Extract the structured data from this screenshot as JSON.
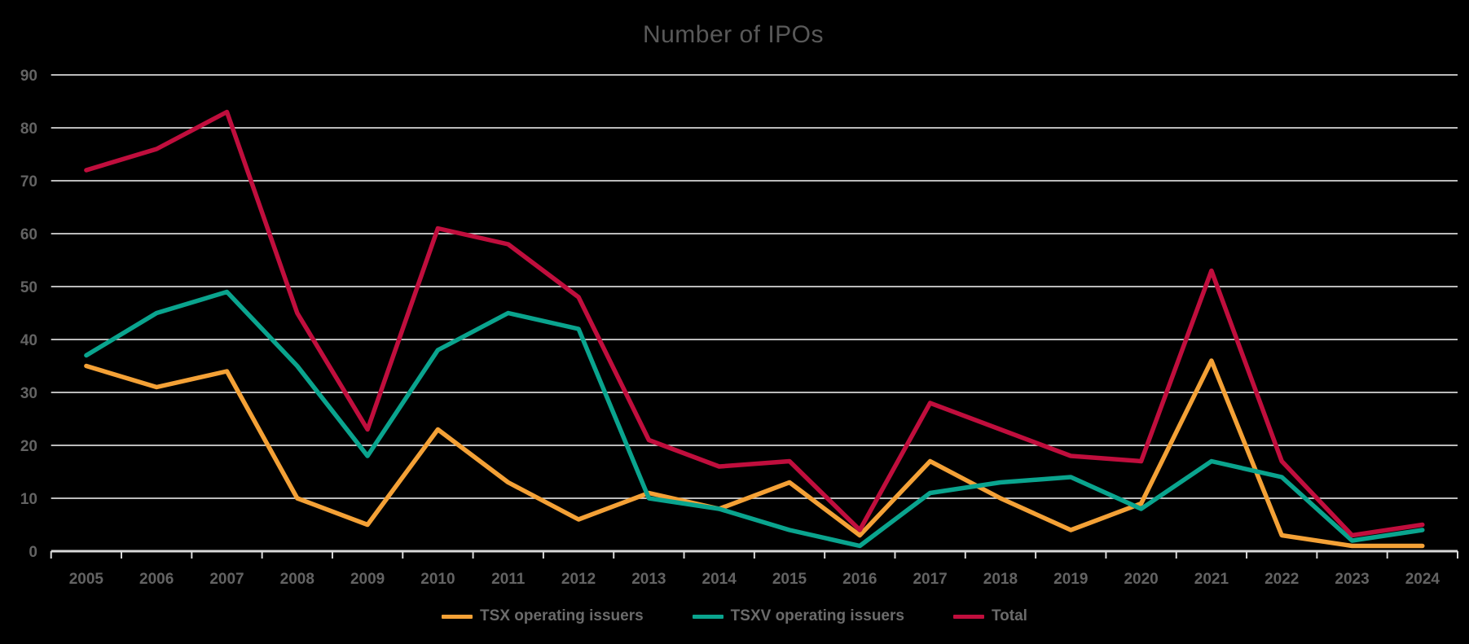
{
  "chart_data": {
    "type": "line",
    "title": "Number of IPOs",
    "categories": [
      "2005",
      "2006",
      "2007",
      "2008",
      "2009",
      "2010",
      "2011",
      "2012",
      "2013",
      "2014",
      "2015",
      "2016",
      "2017",
      "2018",
      "2019",
      "2020",
      "2021",
      "2022",
      "2023",
      "2024"
    ],
    "series": [
      {
        "name": "TSX operating issuers",
        "color": "#F4A136",
        "values": [
          35,
          31,
          34,
          10,
          5,
          23,
          13,
          6,
          11,
          8,
          13,
          3,
          17,
          10,
          4,
          9,
          36,
          3,
          1,
          1
        ]
      },
      {
        "name": "TSXV operating issuers",
        "color": "#0AA48E",
        "values": [
          37,
          45,
          49,
          35,
          18,
          38,
          45,
          42,
          10,
          8,
          4,
          1,
          11,
          13,
          14,
          8,
          17,
          14,
          2,
          4
        ]
      },
      {
        "name": "Total",
        "color": "#C00E3D",
        "values": [
          72,
          76,
          83,
          45,
          23,
          61,
          58,
          48,
          21,
          16,
          17,
          4,
          28,
          23,
          18,
          17,
          53,
          17,
          3,
          5
        ]
      }
    ],
    "ylim": [
      0,
      90
    ],
    "yticks": [
      0,
      10,
      20,
      30,
      40,
      50,
      60,
      70,
      80,
      90
    ],
    "grid": "horizontal",
    "legend_position": "bottom",
    "background_color": "#000000",
    "gridline_color": "#d6d6d6",
    "text_color": "#636363"
  }
}
